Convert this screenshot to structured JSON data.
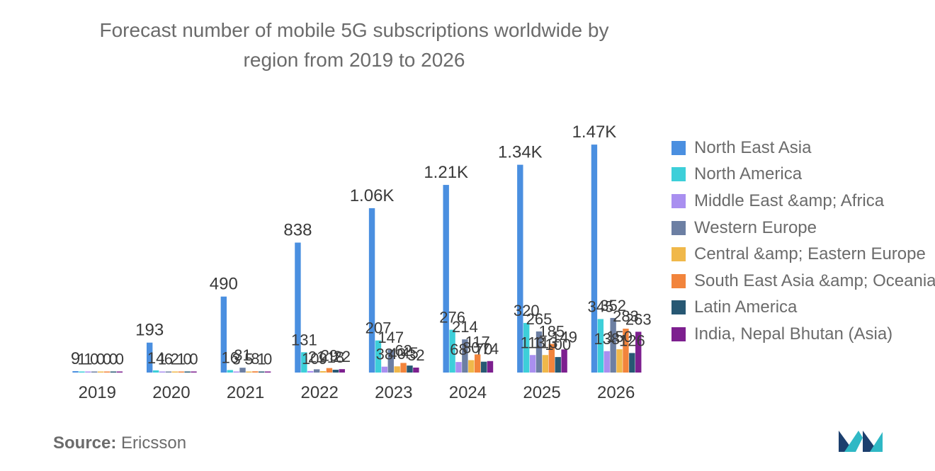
{
  "chart_data": {
    "type": "bar",
    "title_line1": "Forecast number of mobile 5G subscriptions worldwide by",
    "title_line2": "region from 2019 to 2026",
    "categories": [
      "2019",
      "2020",
      "2021",
      "2022",
      "2023",
      "2024",
      "2025",
      "2026"
    ],
    "series": [
      {
        "name": "North East Asia",
        "color": "#4a8fe0",
        "values": [
          9,
          193,
          490,
          838,
          1060,
          1210,
          1340,
          1470
        ],
        "labels": [
          "9",
          "193",
          "490",
          "838",
          "1.06K",
          "1.21K",
          "1.34K",
          "1.47K"
        ]
      },
      {
        "name": "North America",
        "color": "#3dcfd9",
        "values": [
          1,
          14,
          16,
          131,
          207,
          276,
          320,
          345
        ],
        "labels": [
          "1",
          "14",
          "16",
          "131",
          "207",
          "276",
          "320",
          "345"
        ]
      },
      {
        "name": "Middle East &amp; Africa",
        "color": "#a98ff0",
        "values": [
          1,
          1,
          3,
          10,
          38,
          68,
          113,
          138
        ],
        "labels": [
          "1",
          "1",
          "3",
          "10",
          "38",
          "68",
          "113",
          "138"
        ]
      },
      {
        "name": "Western Europe",
        "color": "#6c7fa3",
        "values": [
          0,
          6,
          31,
          21,
          147,
          214,
          265,
          352
        ],
        "labels": [
          "0",
          "6",
          "31",
          "21",
          "147",
          "214",
          "265",
          "352"
        ]
      },
      {
        "name": "Central &amp; Eastern Europe",
        "color": "#f0b84a",
        "values": [
          0,
          2,
          5,
          9,
          40,
          80,
          113,
          150
        ],
        "labels": [
          "0",
          "2",
          "5",
          "9",
          "40",
          "80",
          "113",
          "150"
        ]
      },
      {
        "name": "South East Asia &amp; Oceania",
        "color": "#f2843c",
        "values": [
          0,
          1,
          8,
          29,
          62,
          117,
          185,
          283
        ],
        "labels": [
          "0",
          "1",
          "8",
          "29",
          "62",
          "117",
          "185",
          "283"
        ]
      },
      {
        "name": "Latin America",
        "color": "#275873",
        "values": [
          0,
          0,
          1,
          18,
          45,
          70,
          100,
          126
        ],
        "labels": [
          "0",
          "0",
          "1",
          "18",
          "45",
          "70",
          "100",
          "126"
        ]
      },
      {
        "name": "India, Nepal Bhutan (Asia)",
        "color": "#7d1f8f",
        "values": [
          0,
          0,
          0,
          22,
          32,
          74,
          149,
          263
        ],
        "labels": [
          "0",
          "0",
          "0",
          "22",
          "32",
          "74",
          "149",
          "263"
        ]
      }
    ],
    "ylim": [
      0,
      1900
    ],
    "grid": false,
    "legend_position": "right"
  },
  "source": {
    "label": "Source:",
    "value": "Ericsson"
  },
  "logo": {
    "name": "mordor-intelligence-logo",
    "color_left": "#1c3f6e",
    "color_right": "#2fb8c5"
  }
}
